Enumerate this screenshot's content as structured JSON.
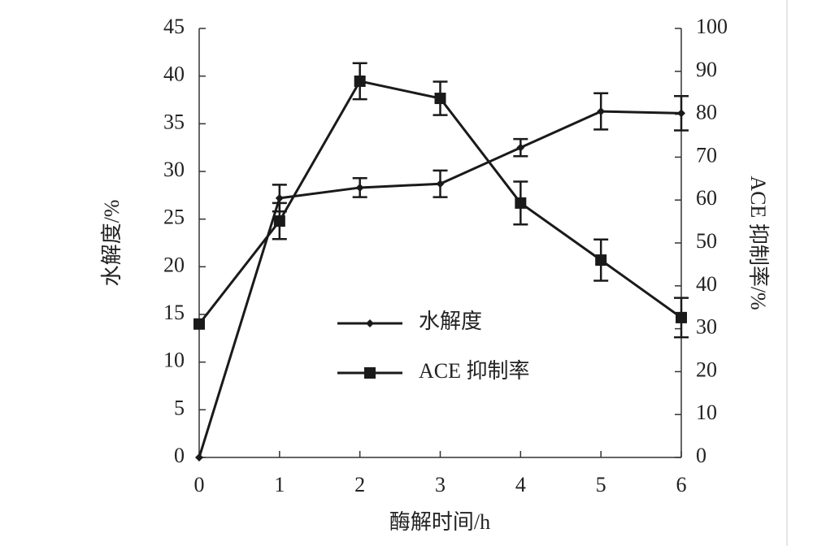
{
  "chart_data": {
    "type": "line",
    "x_label": "酶解时间/h",
    "y_label": "水解度/%",
    "y2_label": "ACE 抑制率/%",
    "x": [
      0,
      1,
      2,
      3,
      4,
      5,
      6
    ],
    "xlim": [
      0,
      6
    ],
    "xticks": [
      0,
      1,
      2,
      3,
      4,
      5,
      6
    ],
    "ylim": [
      0,
      45
    ],
    "yticks": [
      0,
      5,
      10,
      15,
      20,
      25,
      30,
      35,
      40,
      45
    ],
    "y2lim": [
      0,
      100
    ],
    "y2ticks": [
      0,
      10,
      20,
      30,
      40,
      50,
      60,
      70,
      80,
      90,
      100
    ],
    "grid": false,
    "legend": "center",
    "series": [
      {
        "name": "水解度",
        "color": "#1a1a1a",
        "marker": "diamond",
        "values": [
          0,
          27.2,
          28.3,
          28.7,
          32.5,
          36.3,
          36.1
        ],
        "errors": [
          0,
          1.4,
          1.0,
          1.4,
          0.9,
          1.9,
          1.8
        ]
      },
      {
        "name": "ACE 抑制率",
        "color": "#1a1a1a",
        "marker": "square",
        "axis": "y2",
        "values": [
          31.1,
          55.1,
          87.7,
          83.7,
          59.3,
          46.0,
          32.6
        ],
        "errors": [
          0,
          4.2,
          4.2,
          3.9,
          5.0,
          4.8,
          4.6
        ]
      }
    ]
  }
}
